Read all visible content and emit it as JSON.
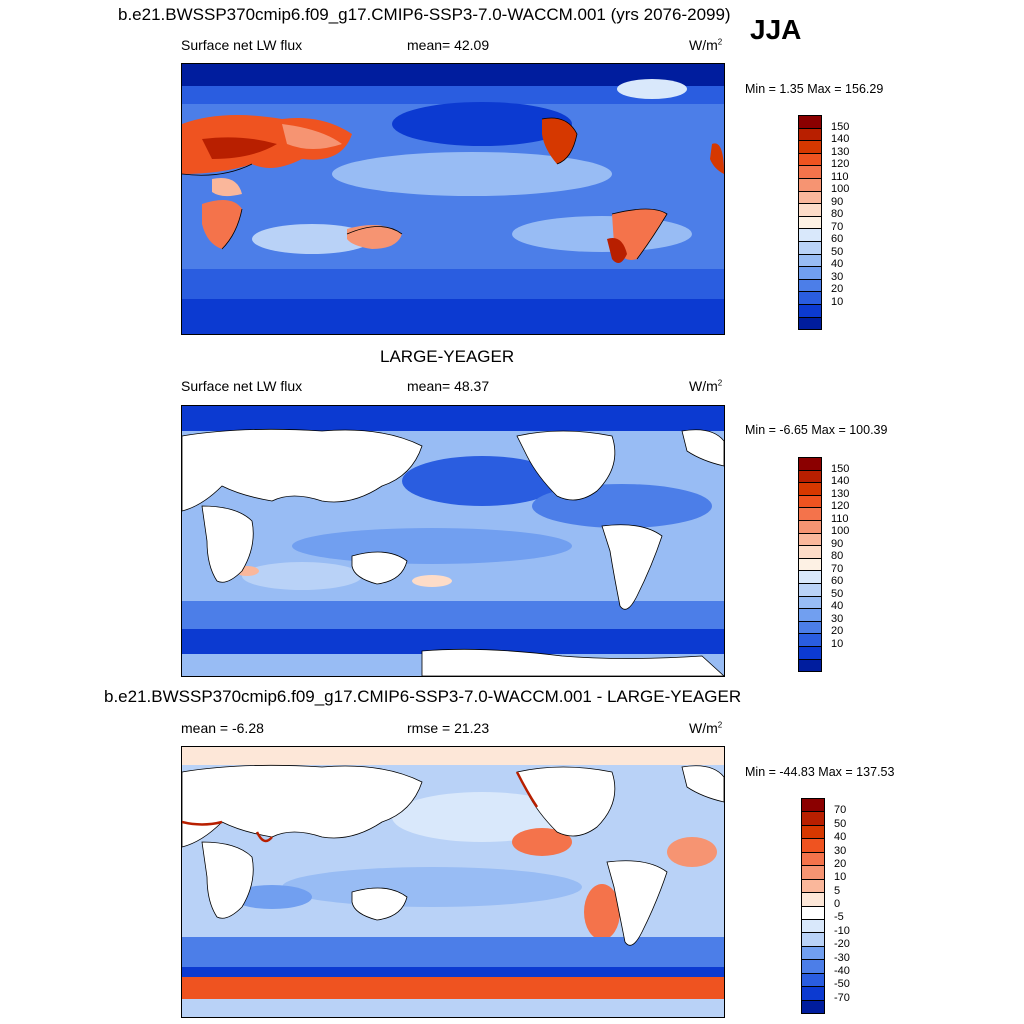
{
  "season": "JJA",
  "panels": [
    {
      "title": "b.e21.BWSSP370cmip6.f09_g17.CMIP6-SSP3-7.0-WACCM.001 (yrs 2076-2099)",
      "left_label": "Surface net LW flux",
      "center_label": "mean=  42.09",
      "units": "W/m",
      "units_sup": "2",
      "minmax": "Min =   1.35 Max = 156.29",
      "colorbar": {
        "labels": [
          "150",
          "140",
          "130",
          "120",
          "110",
          "100",
          "90",
          "80",
          "70",
          "60",
          "50",
          "40",
          "30",
          "20",
          "10"
        ],
        "colors": [
          "#8b0000",
          "#b81f00",
          "#d63800",
          "#ef5320",
          "#f4734b",
          "#f69472",
          "#fab79b",
          "#fddcc8",
          "#fdf1e4",
          "#d9e8fb",
          "#b9d2f7",
          "#98bcf4",
          "#719ff0",
          "#4c7ee8",
          "#2a5de0",
          "#0c3ad1",
          "#001d9e"
        ]
      }
    },
    {
      "title": "LARGE-YEAGER",
      "left_label": "Surface net LW flux",
      "center_label": "mean=  48.37",
      "units": "W/m",
      "units_sup": "2",
      "minmax": "Min =  -6.65 Max = 100.39",
      "colorbar": {
        "labels": [
          "150",
          "140",
          "130",
          "120",
          "110",
          "100",
          "90",
          "80",
          "70",
          "60",
          "50",
          "40",
          "30",
          "20",
          "10"
        ],
        "colors": [
          "#8b0000",
          "#b81f00",
          "#d63800",
          "#ef5320",
          "#f4734b",
          "#f69472",
          "#fab79b",
          "#fddcc8",
          "#fdf1e4",
          "#d9e8fb",
          "#b9d2f7",
          "#98bcf4",
          "#719ff0",
          "#4c7ee8",
          "#2a5de0",
          "#0c3ad1",
          "#001d9e"
        ]
      }
    },
    {
      "title": "b.e21.BWSSP370cmip6.f09_g17.CMIP6-SSP3-7.0-WACCM.001 - LARGE-YEAGER",
      "left_label": "mean =  -6.28",
      "center_label": "rmse =  21.23",
      "units": "W/m",
      "units_sup": "2",
      "minmax": "Min = -44.83 Max = 137.53",
      "colorbar": {
        "labels": [
          "70",
          "50",
          "40",
          "30",
          "20",
          "10",
          "5",
          "0",
          "-5",
          "-10",
          "-20",
          "-30",
          "-40",
          "-50",
          "-70"
        ],
        "colors": [
          "#8b0000",
          "#b81f00",
          "#d63800",
          "#ef5320",
          "#f4734b",
          "#f69472",
          "#fab79b",
          "#fde7d8",
          "#ffffff",
          "#d9e8fb",
          "#b9d2f7",
          "#719ff0",
          "#4c7ee8",
          "#2a5de0",
          "#0c3ad1",
          "#001d9e"
        ]
      }
    }
  ]
}
